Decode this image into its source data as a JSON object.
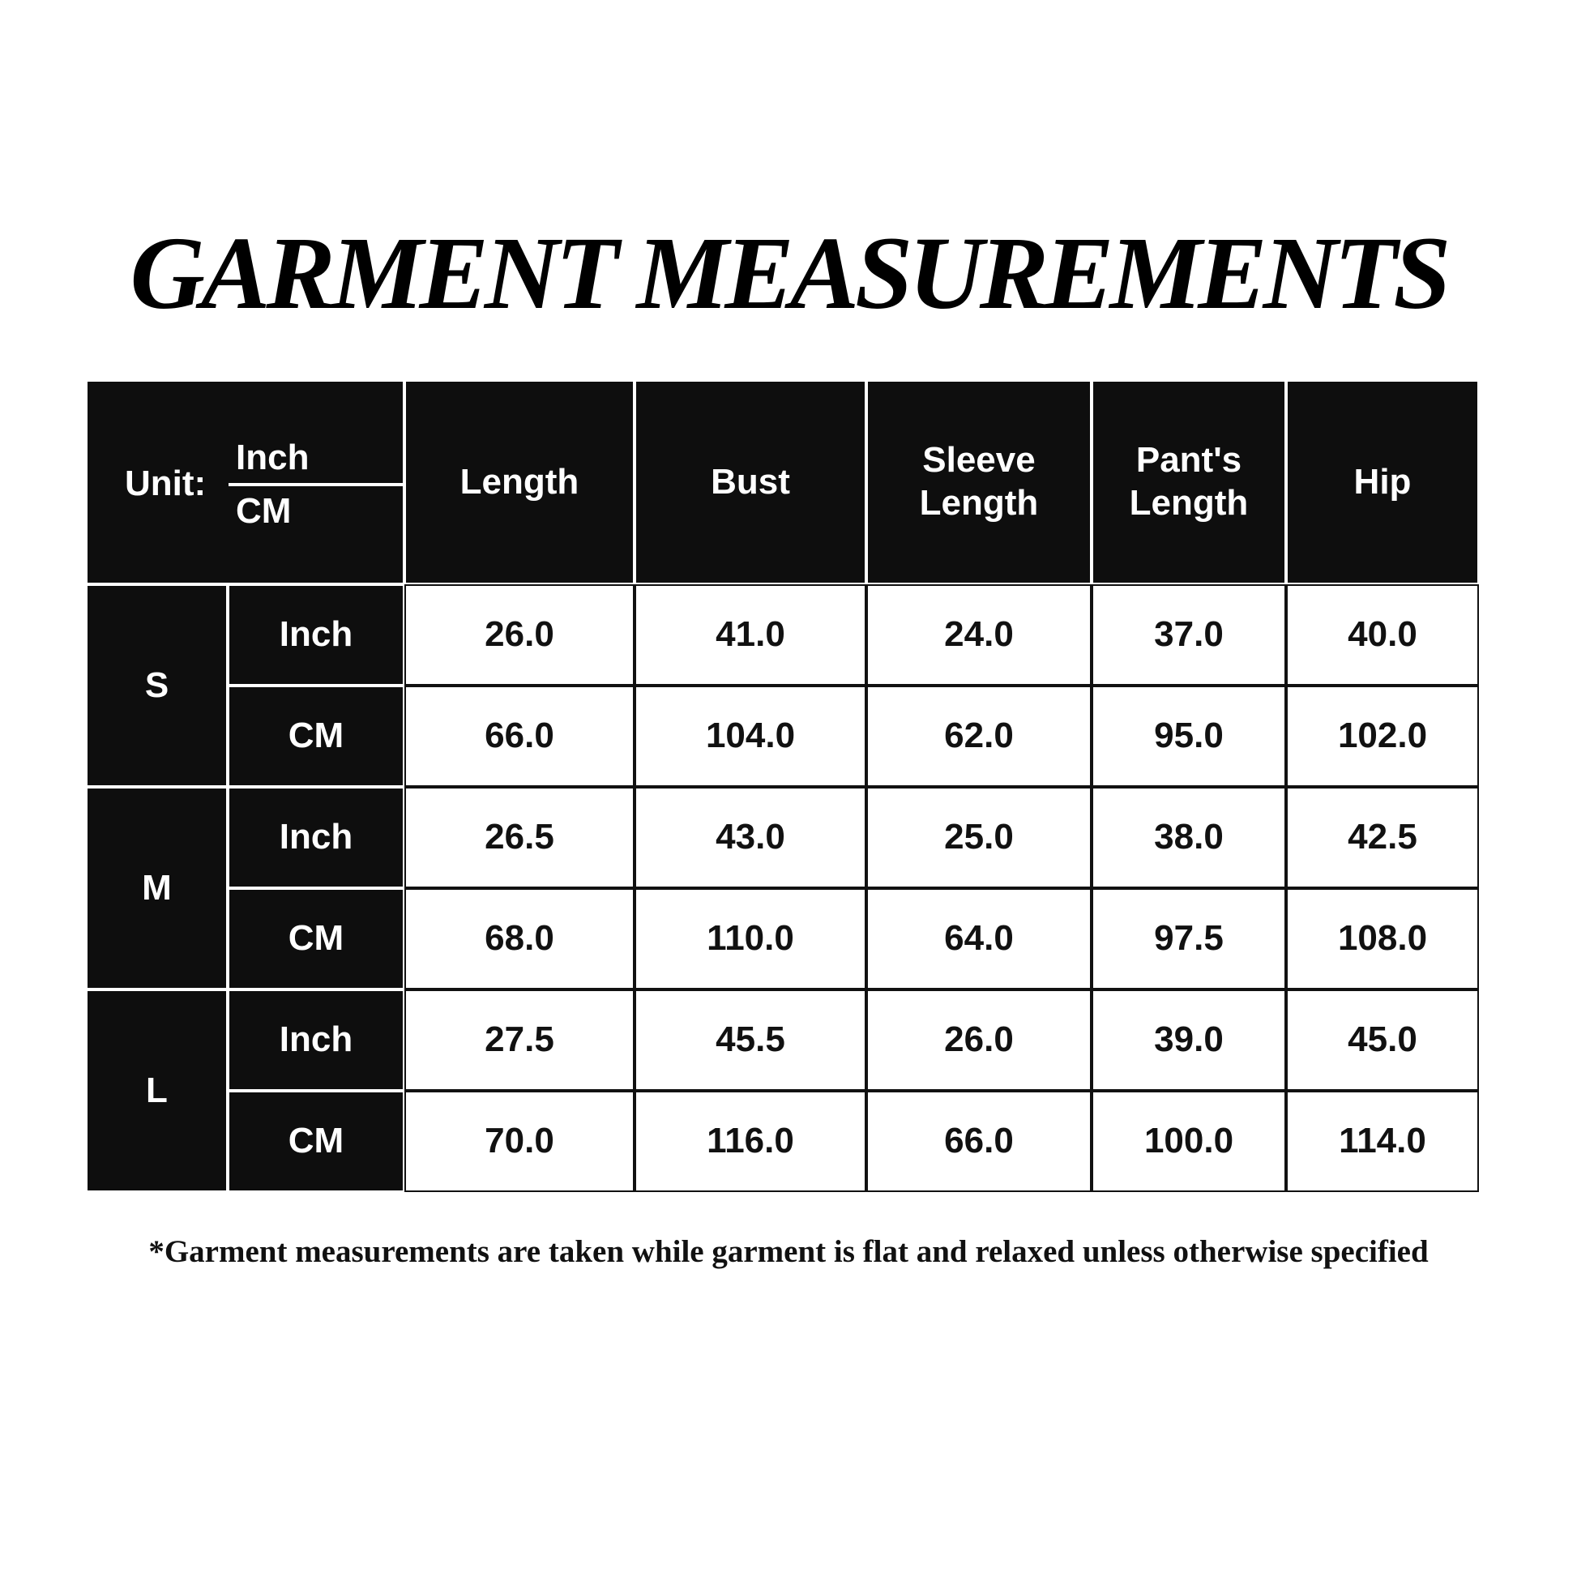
{
  "title": "GARMENT MEASUREMENTS",
  "table": {
    "unit_label": "Unit:",
    "unit_inch": "Inch",
    "unit_cm": "CM",
    "columns": [
      "Length",
      "Bust",
      "Sleeve Length",
      "Pant's Length",
      "Hip"
    ],
    "sizes": [
      {
        "size": "S",
        "rows": [
          {
            "unit": "Inch",
            "values": [
              "26.0",
              "41.0",
              "24.0",
              "37.0",
              "40.0"
            ]
          },
          {
            "unit": "CM",
            "values": [
              "66.0",
              "104.0",
              "62.0",
              "95.0",
              "102.0"
            ]
          }
        ]
      },
      {
        "size": "M",
        "rows": [
          {
            "unit": "Inch",
            "values": [
              "26.5",
              "43.0",
              "25.0",
              "38.0",
              "42.5"
            ]
          },
          {
            "unit": "CM",
            "values": [
              "68.0",
              "110.0",
              "64.0",
              "97.5",
              "108.0"
            ]
          }
        ]
      },
      {
        "size": "L",
        "rows": [
          {
            "unit": "Inch",
            "values": [
              "27.5",
              "45.5",
              "26.0",
              "39.0",
              "45.0"
            ]
          },
          {
            "unit": "CM",
            "values": [
              "70.0",
              "116.0",
              "66.0",
              "100.0",
              "114.0"
            ]
          }
        ]
      }
    ]
  },
  "footer": "*Garment measurements are taken while garment is flat and relaxed unless otherwise specified"
}
